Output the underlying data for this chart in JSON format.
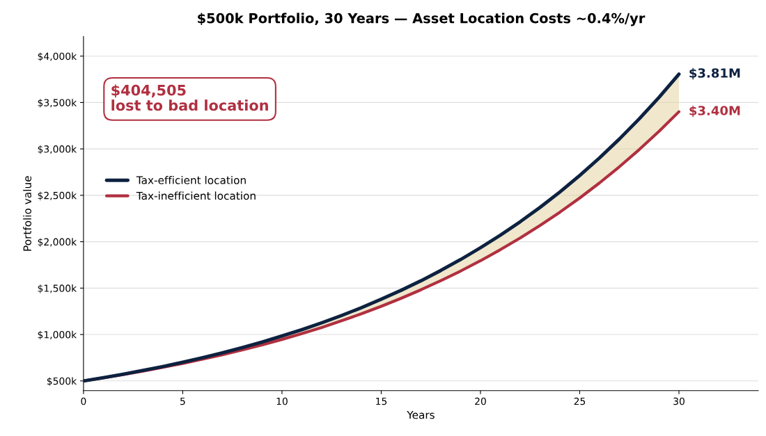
{
  "chart_data": {
    "type": "line",
    "title": "$500k Portfolio, 30 Years — Asset Location Costs ~0.4%/yr",
    "xlabel": "Years",
    "ylabel": "Portfolio value",
    "x": [
      0,
      1,
      2,
      3,
      4,
      5,
      6,
      7,
      8,
      9,
      10,
      11,
      12,
      13,
      14,
      15,
      16,
      17,
      18,
      19,
      20,
      21,
      22,
      23,
      24,
      25,
      26,
      27,
      28,
      29,
      30
    ],
    "series": [
      {
        "name": "Tax-efficient location",
        "color": "#0d2240",
        "values": [
          500,
          535,
          572,
          613,
          655,
          701,
          750,
          803,
          859,
          919,
          984,
          1052,
          1126,
          1205,
          1289,
          1380,
          1476,
          1579,
          1690,
          1808,
          1935,
          2070,
          2215,
          2370,
          2536,
          2714,
          2904,
          3107,
          3324,
          3557,
          3806
        ],
        "lower": [
          500,
          533,
          568,
          606,
          646,
          688,
          734,
          782,
          834,
          889,
          947,
          1010,
          1076,
          1148,
          1223,
          1304,
          1390,
          1482,
          1580,
          1684,
          1795,
          1914,
          2040,
          2175,
          2318,
          2471,
          2634,
          2808,
          2993,
          3191,
          3401
        ],
        "upper": [
          500,
          535,
          572,
          613,
          655,
          701,
          750,
          803,
          859,
          919,
          984,
          1052,
          1126,
          1205,
          1289,
          1380,
          1476,
          1579,
          1690,
          1808,
          1935,
          2070,
          2215,
          2370,
          2536,
          2714,
          2904,
          3107,
          3324,
          3557,
          3806
        ]
      },
      {
        "name": "Tax-inefficient location",
        "color": "#b03040",
        "values": [
          500,
          533,
          568,
          606,
          646,
          688,
          734,
          782,
          834,
          889,
          947,
          1010,
          1076,
          1148,
          1223,
          1304,
          1390,
          1482,
          1580,
          1684,
          1795,
          1914,
          2040,
          2175,
          2318,
          2471,
          2634,
          2808,
          2993,
          3191,
          3401
        ]
      }
    ],
    "xlim": [
      0,
      34
    ],
    "xticks": [
      0,
      5,
      10,
      15,
      20,
      25,
      30
    ],
    "ylim": [
      395,
      4210
    ],
    "yticks": [
      {
        "value": 500,
        "label": "$500k"
      },
      {
        "value": 1000,
        "label": "$1,000k"
      },
      {
        "value": 1500,
        "label": "$1,500k"
      },
      {
        "value": 2000,
        "label": "$2,000k"
      },
      {
        "value": 2500,
        "label": "$2,500k"
      },
      {
        "value": 3000,
        "label": "$3,000k"
      },
      {
        "value": 3500,
        "label": "$3,500k"
      },
      {
        "value": 4000,
        "label": "$4,000k"
      }
    ],
    "annotations": [
      {
        "text": "$3.81M",
        "x": 30,
        "y": 3806
      },
      {
        "text": "$3.40M",
        "x": 30,
        "y": 3401
      },
      "$404,505\nlost to bad location"
    ],
    "grid": "y",
    "legend": "left",
    "marker": "none",
    "line_style": "solid"
  }
}
